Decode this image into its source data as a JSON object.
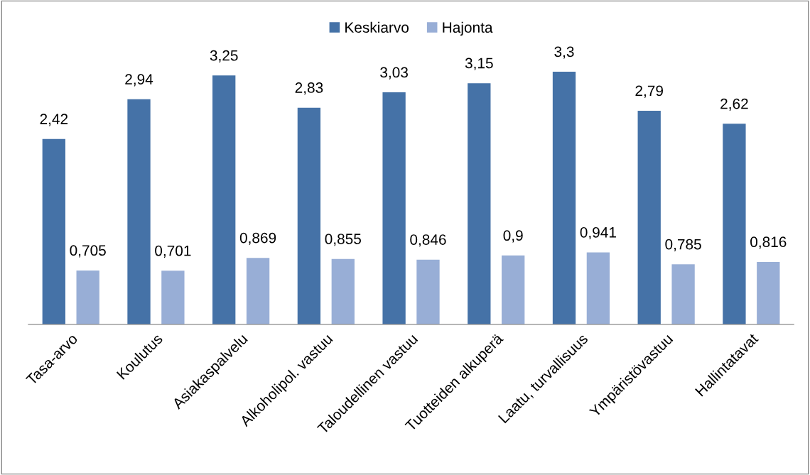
{
  "chart_data": {
    "type": "bar",
    "categories": [
      "Tasa-arvo",
      "Koulutus",
      "Asiakaspalvelu",
      "Alkoholipol. vastuu",
      "Taloudellinen vastuu",
      "Tuotteiden alkuperä",
      "Laatu, turvallisuus",
      "Ympäristövastuu",
      "Hallintatavat"
    ],
    "series": [
      {
        "name": "Keskiarvo",
        "color": "#4572a7",
        "values": [
          2.42,
          2.94,
          3.25,
          2.83,
          3.03,
          3.15,
          3.3,
          2.79,
          2.62
        ],
        "value_labels": [
          "2,42",
          "2,94",
          "3,25",
          "2,83",
          "3,03",
          "3,15",
          "3,3",
          "2,79",
          "2,62"
        ]
      },
      {
        "name": "Hajonta",
        "color": "#98aed6",
        "values": [
          0.705,
          0.701,
          0.869,
          0.855,
          0.846,
          0.9,
          0.941,
          0.785,
          0.816
        ],
        "value_labels": [
          "0,705",
          "0,701",
          "0,869",
          "0,855",
          "0,846",
          "0,9",
          "0,941",
          "0,785",
          "0,816"
        ]
      }
    ],
    "legend": "top",
    "grid": false
  }
}
